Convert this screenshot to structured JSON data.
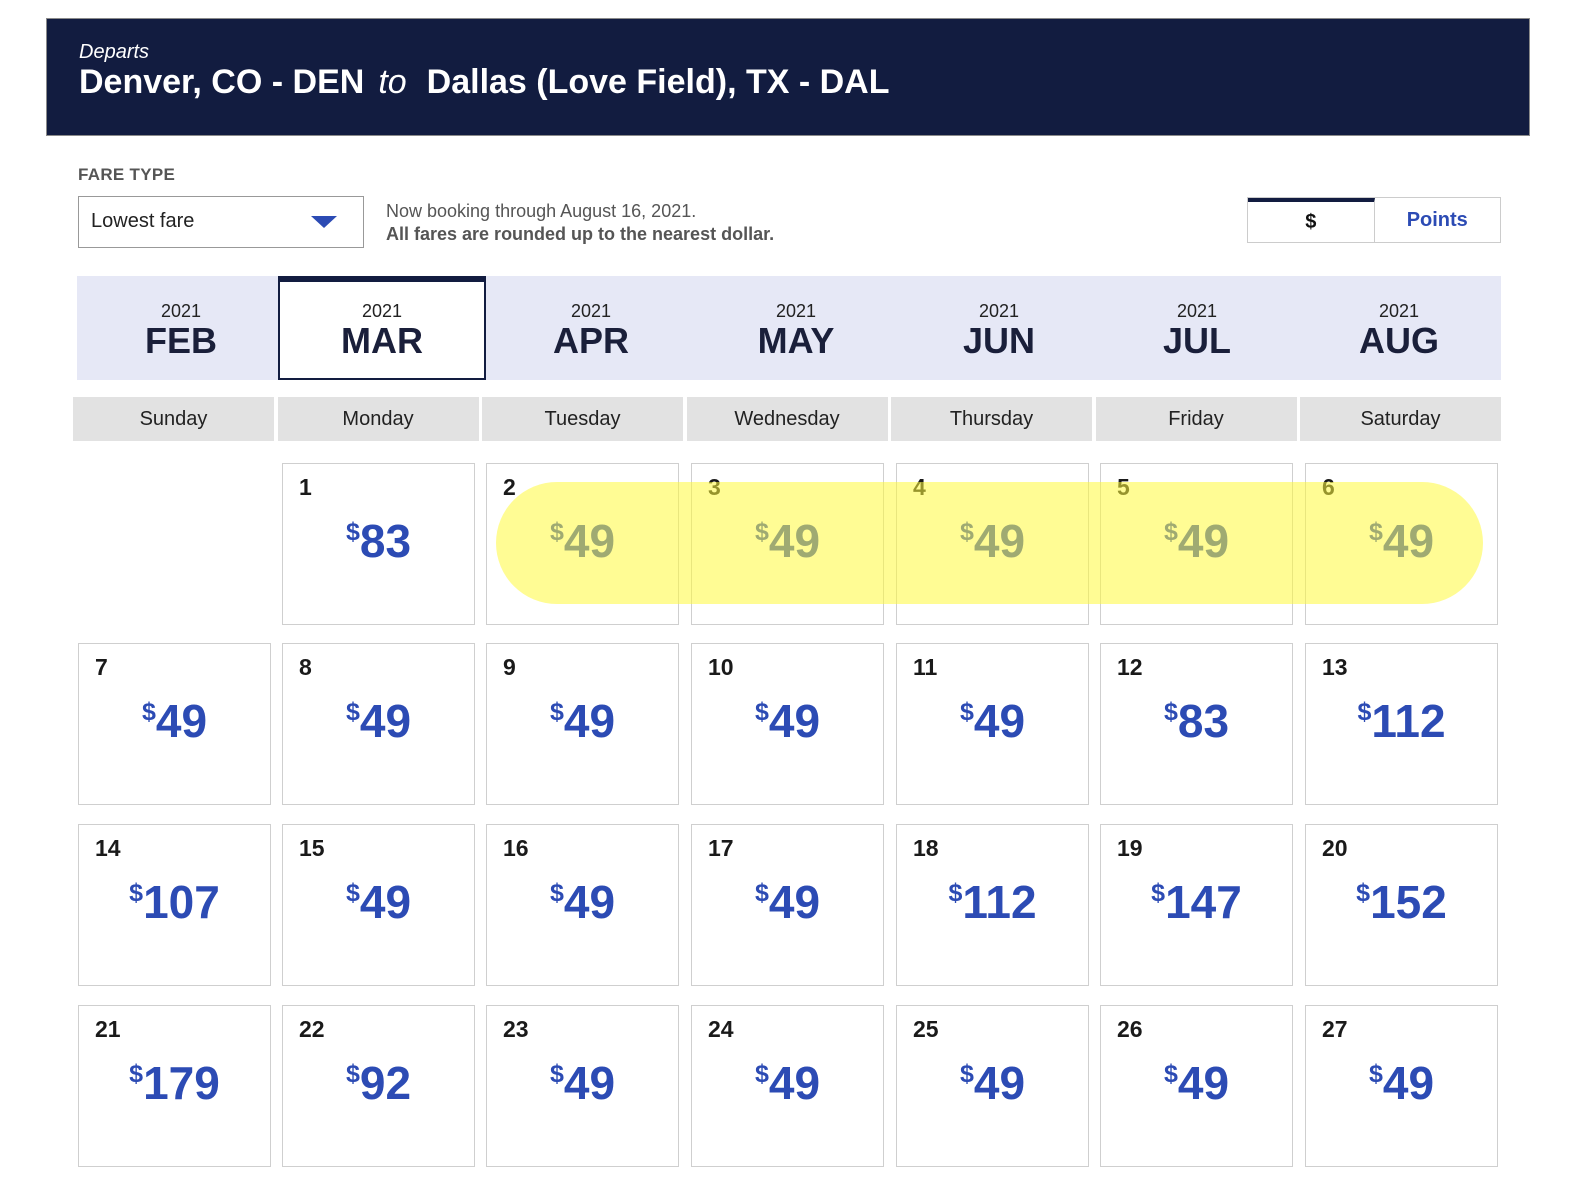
{
  "banner": {
    "label": "Departs",
    "origin": "Denver, CO - DEN",
    "connector": "to",
    "destination": "Dallas (Love Field), TX - DAL"
  },
  "fare_type": {
    "label": "FARE TYPE",
    "selected": "Lowest fare"
  },
  "notice": {
    "line1": "Now booking through August 16, 2021.",
    "line2": "All fares are rounded up to the nearest dollar."
  },
  "currency_toggle": {
    "dollar_label": "$",
    "points_label": "Points",
    "active": "dollar"
  },
  "months": [
    {
      "year": "2021",
      "name": "FEB"
    },
    {
      "year": "2021",
      "name": "MAR",
      "selected": true
    },
    {
      "year": "2021",
      "name": "APR"
    },
    {
      "year": "2021",
      "name": "MAY"
    },
    {
      "year": "2021",
      "name": "JUN"
    },
    {
      "year": "2021",
      "name": "JUL"
    },
    {
      "year": "2021",
      "name": "AUG"
    }
  ],
  "weekdays": [
    "Sunday",
    "Monday",
    "Tuesday",
    "Wednesday",
    "Thursday",
    "Friday",
    "Saturday"
  ],
  "currency_symbol": "$",
  "days": [
    {
      "day": "1",
      "price": "83"
    },
    {
      "day": "2",
      "price": "49"
    },
    {
      "day": "3",
      "price": "49"
    },
    {
      "day": "4",
      "price": "49"
    },
    {
      "day": "5",
      "price": "49"
    },
    {
      "day": "6",
      "price": "49"
    },
    {
      "day": "7",
      "price": "49"
    },
    {
      "day": "8",
      "price": "49"
    },
    {
      "day": "9",
      "price": "49"
    },
    {
      "day": "10",
      "price": "49"
    },
    {
      "day": "11",
      "price": "49"
    },
    {
      "day": "12",
      "price": "83"
    },
    {
      "day": "13",
      "price": "112"
    },
    {
      "day": "14",
      "price": "107"
    },
    {
      "day": "15",
      "price": "49"
    },
    {
      "day": "16",
      "price": "49"
    },
    {
      "day": "17",
      "price": "49"
    },
    {
      "day": "18",
      "price": "112"
    },
    {
      "day": "19",
      "price": "147"
    },
    {
      "day": "20",
      "price": "152"
    },
    {
      "day": "21",
      "price": "179"
    },
    {
      "day": "22",
      "price": "92"
    },
    {
      "day": "23",
      "price": "49"
    },
    {
      "day": "24",
      "price": "49"
    },
    {
      "day": "25",
      "price": "49"
    },
    {
      "day": "26",
      "price": "49"
    },
    {
      "day": "27",
      "price": "49"
    }
  ],
  "colors": {
    "banner_bg": "#121c40",
    "price": "#2c4bb4",
    "highlight": "#fffa3c"
  }
}
